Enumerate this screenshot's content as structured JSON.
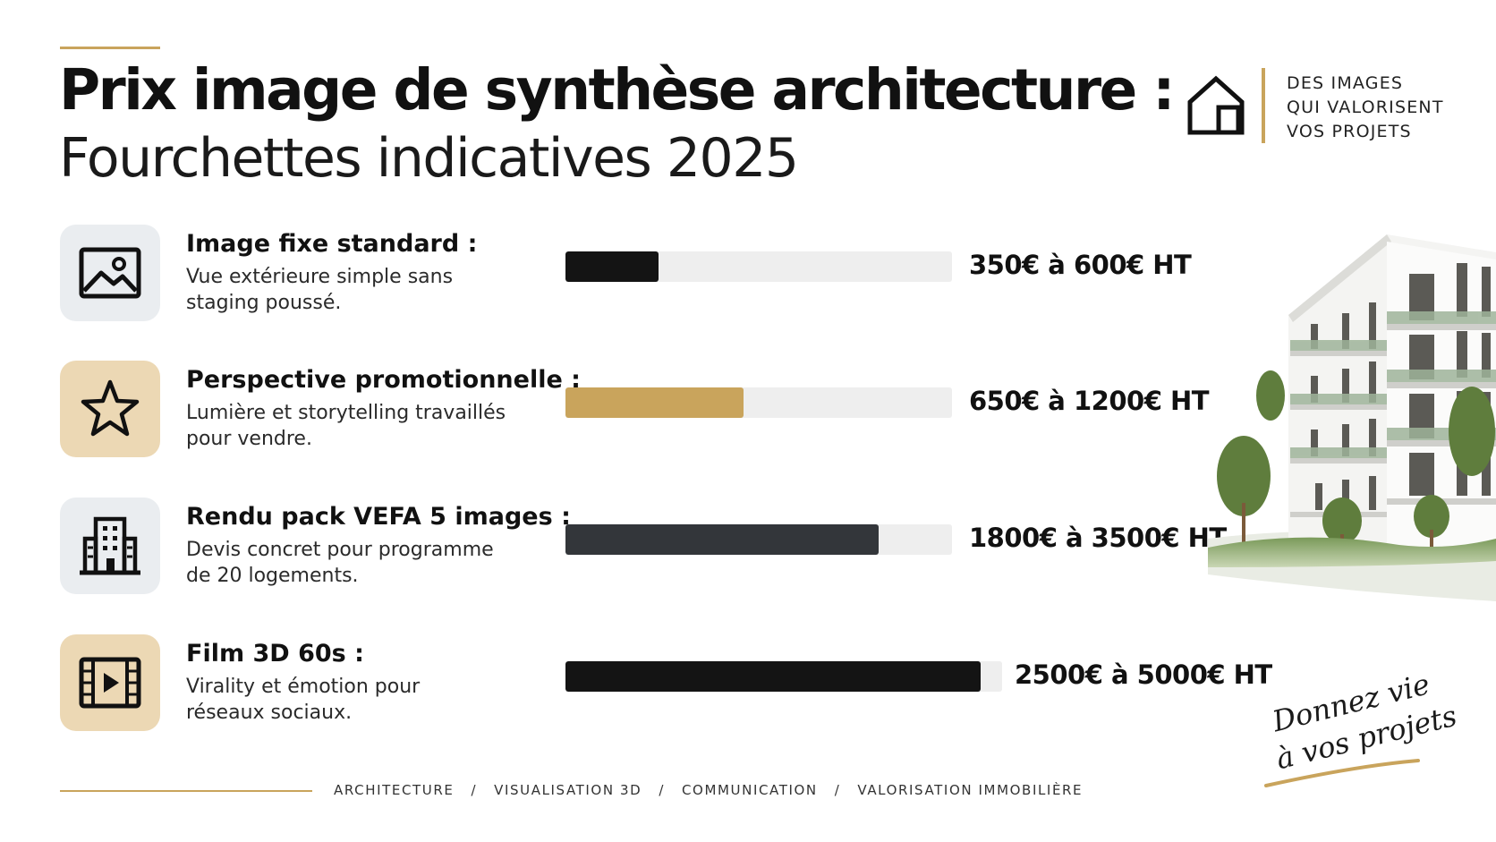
{
  "title": "Prix image de synthèse architecture :",
  "subtitle": "Fourchettes indicatives 2025",
  "brand": {
    "icon": "house-icon",
    "lines": [
      "DES IMAGES",
      "QUI VALORISENT",
      "VOS PROJETS"
    ]
  },
  "colors": {
    "accent": "#c9a45c",
    "dark": "#111111",
    "track": "#eeeeee"
  },
  "items": [
    {
      "icon": "image-icon",
      "label": "Image fixe standard :",
      "description": [
        "Vue extérieure simple sans",
        "staging poussé."
      ],
      "price": "350€ à 600€ HT",
      "bar_fill": 0.24,
      "bar_color": "#141414"
    },
    {
      "icon": "star-icon",
      "label": "Perspective promotionnelle :",
      "description": [
        "Lumière et storytelling travaillés",
        "pour vendre."
      ],
      "price": "650€ à 1200€ HT",
      "bar_fill": 0.46,
      "bar_color": "#c9a45c"
    },
    {
      "icon": "building-icon",
      "label": "Rendu pack VEFA 5 images :",
      "description": [
        "Devis concret pour programme",
        "de 20 logements."
      ],
      "price": "1800€ à 3500€ HT",
      "bar_fill": 0.81,
      "bar_color": "#33363a"
    },
    {
      "icon": "film-icon",
      "label": "Film 3D 60s :",
      "description": [
        "Virality et émotion pour",
        "réseaux sociaux."
      ],
      "price": "2500€ à 5000€ HT",
      "bar_fill": 0.95,
      "bar_color": "#141414"
    }
  ],
  "signature": [
    "Donnez vie",
    "à vos projets"
  ],
  "footer": [
    "ARCHITECTURE",
    "VISUALISATION 3D",
    "COMMUNICATION",
    "VALORISATION IMMOBILIÈRE"
  ]
}
